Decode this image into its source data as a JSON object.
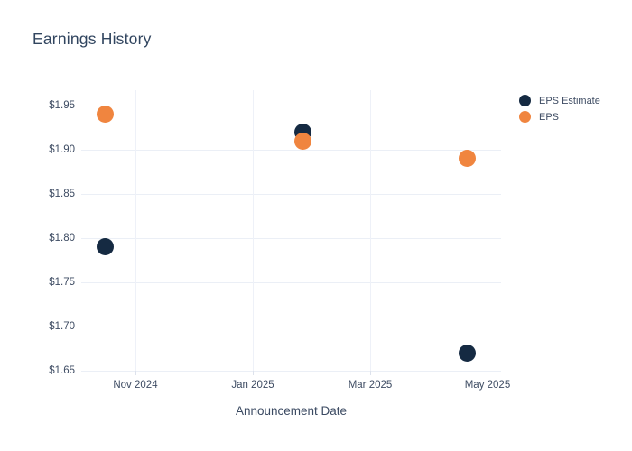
{
  "chart_data": {
    "type": "scatter",
    "title": "Earnings History",
    "xlabel": "Announcement Date",
    "ylabel": "",
    "grid": true,
    "legend_position": "right",
    "x_unit": "months since Nov 2024",
    "xlim": [
      -0.923,
      6.231
    ],
    "ylim": [
      1.65,
      1.9673
    ],
    "marker_diameter": 19,
    "y_ticks": [
      {
        "value": 1.95,
        "label": "$1.95"
      },
      {
        "value": 1.9,
        "label": "$1.90"
      },
      {
        "value": 1.85,
        "label": "$1.85"
      },
      {
        "value": 1.8,
        "label": "$1.80"
      },
      {
        "value": 1.75,
        "label": "$1.75"
      },
      {
        "value": 1.7,
        "label": "$1.70"
      },
      {
        "value": 1.65,
        "label": "$1.65"
      }
    ],
    "x_ticks": [
      {
        "x": 0,
        "label": "Nov 2024"
      },
      {
        "x": 2,
        "label": "Jan 2025"
      },
      {
        "x": 4,
        "label": "Mar 2025"
      },
      {
        "x": 6,
        "label": "May 2025"
      }
    ],
    "series": [
      {
        "name": "EPS Estimate",
        "color": "#152a42",
        "points": [
          {
            "x": -0.52,
            "y": 1.79,
            "approx_date": "2024-10-17"
          },
          {
            "x": 2.85,
            "y": 1.92,
            "approx_date": "2025-01-27"
          },
          {
            "x": 5.65,
            "y": 1.67,
            "approx_date": "2025-04-21"
          }
        ]
      },
      {
        "name": "EPS",
        "color": "#f0853f",
        "points": [
          {
            "x": -0.52,
            "y": 1.94,
            "approx_date": "2024-10-17"
          },
          {
            "x": 2.85,
            "y": 1.91,
            "approx_date": "2025-01-27"
          },
          {
            "x": 5.65,
            "y": 1.89,
            "approx_date": "2025-04-21"
          }
        ]
      }
    ]
  },
  "legend": {
    "items": [
      {
        "label": "EPS Estimate",
        "color": "#152a42"
      },
      {
        "label": "EPS",
        "color": "#f0853f"
      }
    ]
  },
  "colors": {
    "background": "#ffffff",
    "gridline": "#ebeff6",
    "tick_text": "#3e4c63",
    "title_text": "#31455f"
  }
}
